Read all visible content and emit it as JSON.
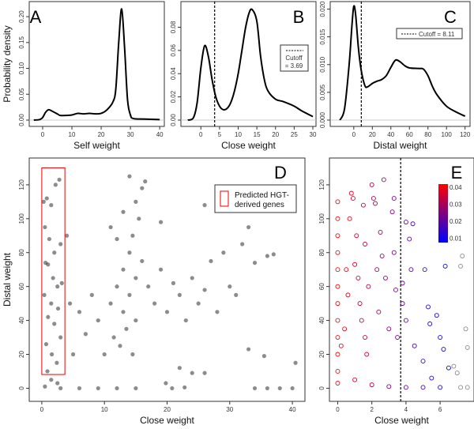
{
  "chart_data": [
    {
      "panel": "A",
      "type": "line",
      "xlabel": "Self weight",
      "ylabel": "Probability density",
      "xlim": [
        -3.5,
        40.5
      ],
      "ylim": [
        0,
        0.22
      ],
      "xticks": [
        0,
        10,
        20,
        30,
        40
      ],
      "xtick_labels": [
        "0",
        "10",
        "20",
        "30",
        "40"
      ],
      "yticks": [
        0,
        0.05,
        0.1,
        0.15,
        0.2
      ],
      "ytick_labels": [
        "0.00",
        "0.05",
        "0.10",
        "0.15",
        "0.20"
      ],
      "x": [
        -3,
        -1,
        0,
        1,
        2,
        3,
        5,
        6,
        8,
        10,
        12,
        14,
        16,
        18,
        20,
        22,
        24,
        25,
        26,
        27,
        28,
        29,
        30,
        31,
        35,
        40
      ],
      "y": [
        0,
        0.001,
        0.005,
        0.015,
        0.02,
        0.018,
        0.012,
        0.009,
        0.009,
        0.01,
        0.013,
        0.012,
        0.013,
        0.012,
        0.013,
        0.02,
        0.035,
        0.06,
        0.15,
        0.215,
        0.14,
        0.04,
        0.01,
        0.003,
        0.002,
        0.001
      ]
    },
    {
      "panel": "B",
      "type": "line",
      "xlabel": "Close weight",
      "xlim": [
        -4.5,
        30
      ],
      "ylim": [
        0,
        0.098
      ],
      "xticks": [
        0,
        5,
        10,
        15,
        20,
        25,
        30
      ],
      "xtick_labels": [
        "0",
        "5",
        "10",
        "15",
        "20",
        "25",
        "30"
      ],
      "yticks": [
        0,
        0.02,
        0.04,
        0.06,
        0.08
      ],
      "ytick_labels": [
        "0.00",
        "0.02",
        "0.04",
        "0.06",
        "0.08"
      ],
      "x": [
        -3.5,
        -2,
        -1,
        0,
        1,
        2,
        3,
        4,
        5,
        6,
        7,
        8,
        9,
        10,
        11,
        12,
        13,
        13.8,
        15,
        16,
        17,
        18,
        20,
        22,
        25,
        27,
        30
      ],
      "y": [
        0,
        0.002,
        0.015,
        0.045,
        0.064,
        0.055,
        0.035,
        0.02,
        0.012,
        0.009,
        0.01,
        0.015,
        0.025,
        0.04,
        0.06,
        0.08,
        0.093,
        0.095,
        0.085,
        0.055,
        0.035,
        0.025,
        0.018,
        0.016,
        0.012,
        0.008,
        0.003
      ],
      "cutoff": 3.69,
      "legend": {
        "line1": "Cutoff",
        "line2": "= 3.69"
      }
    },
    {
      "panel": "C",
      "type": "line",
      "xlabel": "Distal weight",
      "xlim": [
        -22,
        122
      ],
      "ylim": [
        0,
        0.0205
      ],
      "xticks": [
        0,
        20,
        40,
        60,
        80,
        100,
        120
      ],
      "xtick_labels": [
        "0",
        "20",
        "40",
        "60",
        "80",
        "100",
        "120"
      ],
      "yticks": [
        0,
        0.005,
        0.01,
        0.015,
        0.02
      ],
      "ytick_labels": [
        "0.000",
        "0.005",
        "0.010",
        "0.015",
        "0.020"
      ],
      "x": [
        -15,
        -10,
        -5,
        -2,
        0,
        2,
        5,
        8,
        12,
        15,
        20,
        25,
        30,
        35,
        40,
        45,
        50,
        55,
        60,
        70,
        75,
        80,
        85,
        90,
        100,
        110,
        120
      ],
      "y": [
        0,
        0.002,
        0.01,
        0.017,
        0.0205,
        0.019,
        0.013,
        0.009,
        0.0062,
        0.006,
        0.0066,
        0.007,
        0.0073,
        0.008,
        0.0095,
        0.0108,
        0.0105,
        0.0098,
        0.0094,
        0.0093,
        0.0092,
        0.008,
        0.006,
        0.0045,
        0.0025,
        0.0015,
        0.0007
      ],
      "cutoff": 8.11,
      "legend": {
        "text": "Cutoff = 8.11"
      }
    },
    {
      "panel": "D",
      "type": "scatter",
      "xlabel": "Close weight",
      "ylabel": "Distal weight",
      "xlim": [
        -1.5,
        41.5
      ],
      "ylim": [
        -4,
        133
      ],
      "xticks": [
        0,
        10,
        20,
        30,
        40
      ],
      "xtick_labels": [
        "0",
        "10",
        "20",
        "30",
        "40"
      ],
      "yticks": [
        0,
        20,
        40,
        60,
        80,
        100,
        120
      ],
      "ytick_labels": [
        "0",
        "20",
        "40",
        "60",
        "80",
        "100",
        "120"
      ],
      "hgt_region": {
        "x": [
          0,
          3.69
        ],
        "y": [
          8.11,
          130
        ]
      },
      "legend": {
        "line1": "Predicted HGT-",
        "line2": "derived genes"
      },
      "points": [
        [
          0.3,
          110
        ],
        [
          0.8,
          112
        ],
        [
          1.5,
          108
        ],
        [
          2.2,
          120
        ],
        [
          2.8,
          123
        ],
        [
          0.5,
          95
        ],
        [
          1.2,
          88
        ],
        [
          2,
          80
        ],
        [
          3,
          85
        ],
        [
          0.6,
          74
        ],
        [
          1,
          73
        ],
        [
          1.8,
          65
        ],
        [
          2.5,
          60
        ],
        [
          3.2,
          62
        ],
        [
          0.4,
          55
        ],
        [
          1.5,
          50
        ],
        [
          2.6,
          47
        ],
        [
          1,
          42
        ],
        [
          2,
          38
        ],
        [
          3,
          30
        ],
        [
          0.7,
          26
        ],
        [
          1.6,
          20
        ],
        [
          2.4,
          15
        ],
        [
          0.9,
          10
        ],
        [
          1.5,
          5
        ],
        [
          2.5,
          3
        ],
        [
          0.5,
          1
        ],
        [
          4,
          90
        ],
        [
          4.5,
          50
        ],
        [
          5,
          20
        ],
        [
          6,
          45
        ],
        [
          7,
          32
        ],
        [
          8,
          55
        ],
        [
          9,
          40
        ],
        [
          10,
          20
        ],
        [
          11,
          50
        ],
        [
          11.5,
          30
        ],
        [
          12,
          60
        ],
        [
          12.5,
          25
        ],
        [
          13,
          45
        ],
        [
          13,
          70
        ],
        [
          13.5,
          35
        ],
        [
          14,
          80
        ],
        [
          14,
          55
        ],
        [
          14.5,
          90
        ],
        [
          14.5,
          20
        ],
        [
          15,
          65
        ],
        [
          15,
          40
        ],
        [
          15.5,
          100
        ],
        [
          16,
          118
        ],
        [
          16.5,
          122
        ],
        [
          15,
          110
        ],
        [
          14,
          125
        ],
        [
          13,
          104
        ],
        [
          12,
          88
        ],
        [
          11,
          95
        ],
        [
          16,
          75
        ],
        [
          17,
          60
        ],
        [
          18,
          50
        ],
        [
          19,
          70
        ],
        [
          19,
          98
        ],
        [
          20,
          45
        ],
        [
          21,
          62
        ],
        [
          22,
          55
        ],
        [
          23,
          40
        ],
        [
          24,
          65
        ],
        [
          25,
          50
        ],
        [
          26,
          58
        ],
        [
          26,
          108
        ],
        [
          27,
          75
        ],
        [
          28,
          45
        ],
        [
          29,
          80
        ],
        [
          30,
          60
        ],
        [
          31,
          55
        ],
        [
          32,
          85
        ],
        [
          33,
          95
        ],
        [
          34,
          74
        ],
        [
          36,
          78
        ],
        [
          37,
          79
        ],
        [
          33,
          23
        ],
        [
          35.5,
          19
        ],
        [
          40.5,
          15
        ],
        [
          26,
          9
        ],
        [
          24,
          9
        ],
        [
          22,
          12
        ],
        [
          19.8,
          3
        ],
        [
          20.8,
          0
        ],
        [
          22.8,
          0.5
        ],
        [
          3,
          0
        ],
        [
          6,
          0
        ],
        [
          9,
          0
        ],
        [
          12,
          0
        ],
        [
          15,
          0
        ],
        [
          34,
          0
        ],
        [
          36,
          0
        ],
        [
          38,
          0
        ],
        [
          40,
          0
        ]
      ]
    },
    {
      "panel": "E",
      "type": "scatter",
      "xlabel": "Close weight",
      "xlim": [
        -0.3,
        7.8
      ],
      "ylim": [
        -4,
        133
      ],
      "xticks": [
        0,
        2,
        4,
        6
      ],
      "xtick_labels": [
        "0",
        "2",
        "4",
        "6"
      ],
      "yticks": [
        0,
        20,
        40,
        60,
        80,
        100,
        120
      ],
      "ytick_labels": [
        "0",
        "20",
        "40",
        "60",
        "80",
        "100",
        "120"
      ],
      "cutoff": 3.69,
      "colorbar": {
        "min": 0.01,
        "max": 0.04,
        "labels": [
          "0.04",
          "0.03",
          "0.02",
          "0.01"
        ],
        "low_color": "#0000ff",
        "high_color": "#ff0000"
      },
      "points": [
        [
          0,
          110
        ],
        [
          0,
          100
        ],
        [
          0,
          90
        ],
        [
          0,
          80
        ],
        [
          0,
          70
        ],
        [
          0,
          60
        ],
        [
          0,
          50
        ],
        [
          0,
          40
        ],
        [
          0,
          30
        ],
        [
          0,
          20
        ],
        [
          0,
          10
        ],
        [
          0,
          3
        ],
        [
          0.2,
          25
        ],
        [
          0.4,
          35
        ],
        [
          0.5,
          70
        ],
        [
          0.6,
          55
        ],
        [
          0.7,
          100
        ],
        [
          0.8,
          115
        ],
        [
          0.9,
          112
        ],
        [
          1,
          73
        ],
        [
          1.1,
          90
        ],
        [
          1.2,
          65
        ],
        [
          1.3,
          50
        ],
        [
          1.4,
          40
        ],
        [
          1.5,
          108
        ],
        [
          1.6,
          85
        ],
        [
          1.6,
          30
        ],
        [
          1.7,
          20
        ],
        [
          1.8,
          60
        ],
        [
          2,
          120
        ],
        [
          2.1,
          112
        ],
        [
          2.2,
          109
        ],
        [
          2.3,
          70
        ],
        [
          2.4,
          45
        ],
        [
          2.5,
          92
        ],
        [
          2.6,
          78
        ],
        [
          2.7,
          123
        ],
        [
          2.8,
          65
        ],
        [
          3,
          35
        ],
        [
          3.2,
          104
        ],
        [
          3.3,
          112
        ],
        [
          3.3,
          80
        ],
        [
          3.4,
          58
        ],
        [
          3.5,
          30
        ],
        [
          3.8,
          62
        ],
        [
          3.8,
          50
        ],
        [
          4,
          98
        ],
        [
          4.2,
          88
        ],
        [
          4.4,
          97
        ],
        [
          4.3,
          70
        ],
        [
          4,
          40
        ],
        [
          4.5,
          25
        ],
        [
          5,
          16
        ],
        [
          5.1,
          70
        ],
        [
          5.3,
          48
        ],
        [
          5.4,
          38
        ],
        [
          5.5,
          6
        ],
        [
          5.8,
          43
        ],
        [
          6,
          30
        ],
        [
          6.2,
          23
        ],
        [
          6.3,
          72
        ],
        [
          6.5,
          12
        ],
        [
          1,
          5
        ],
        [
          2,
          2
        ],
        [
          3,
          1
        ],
        [
          4,
          0.5
        ],
        [
          5,
          0.5
        ],
        [
          6,
          0.5
        ],
        [
          6.8,
          13
        ],
        [
          7,
          9
        ],
        [
          7.2,
          72
        ],
        [
          7.3,
          78
        ],
        [
          7.5,
          35
        ],
        [
          7.6,
          24
        ],
        [
          7.2,
          0.5
        ],
        [
          7.6,
          0.5
        ]
      ]
    }
  ],
  "panel_labels": [
    "A",
    "B",
    "C",
    "D",
    "E"
  ]
}
